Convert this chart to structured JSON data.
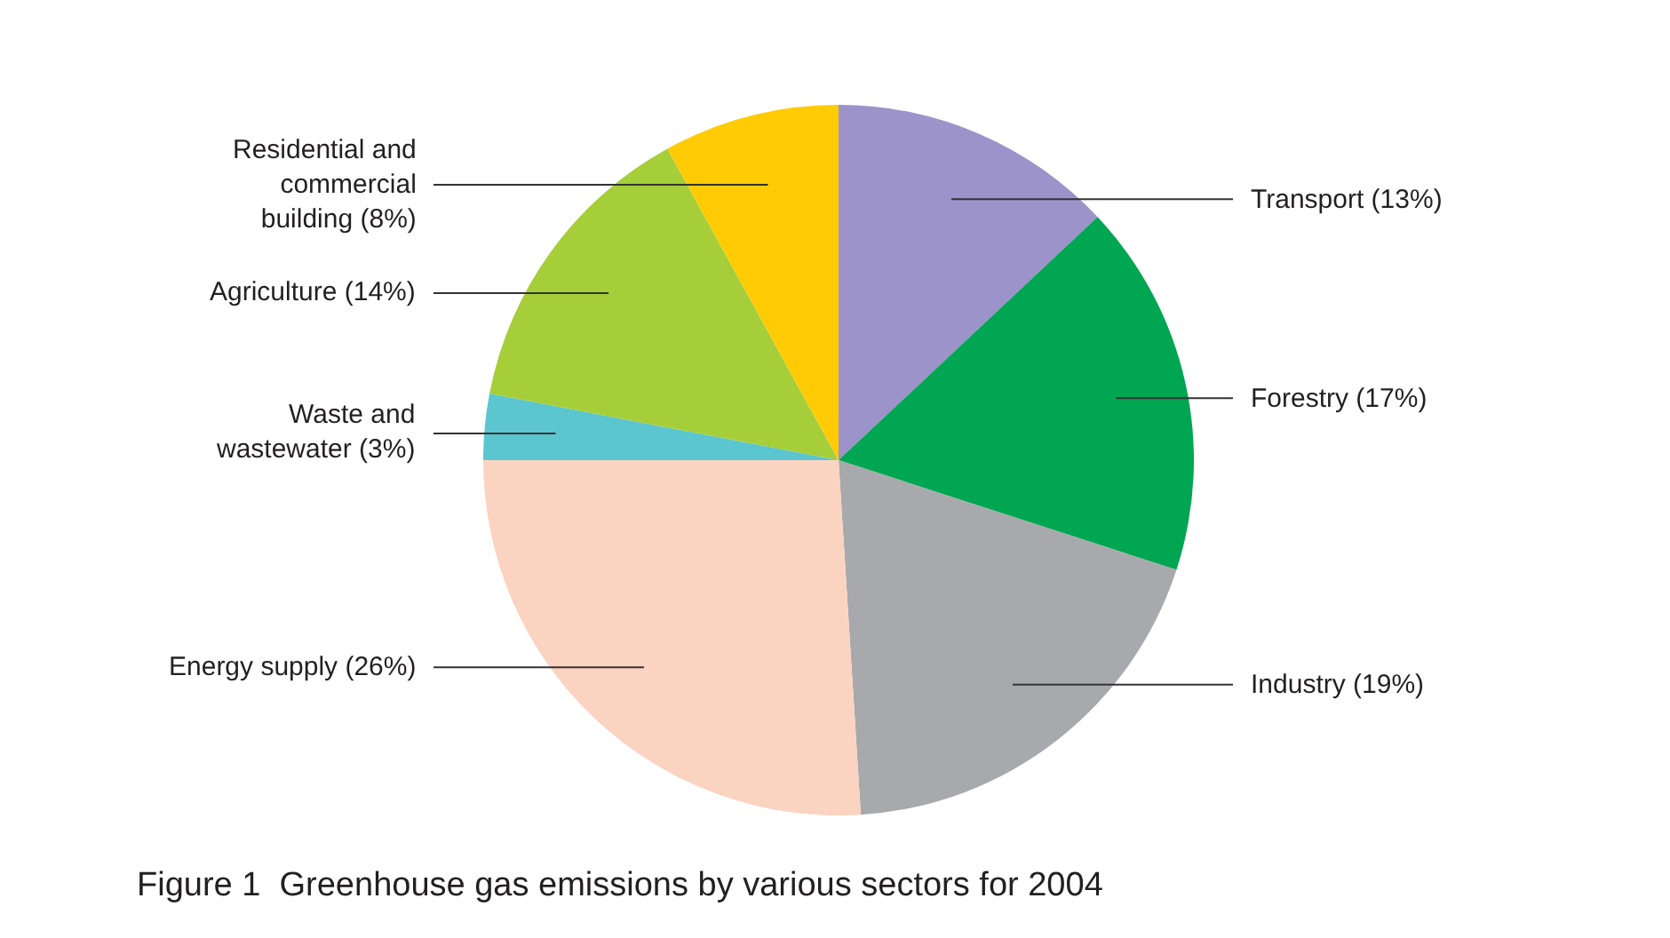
{
  "chart_data": {
    "type": "pie",
    "title": "Figure 1  Greenhouse gas emissions by various sectors for 2004",
    "categories": [
      "Transport (13%)",
      "Forestry (17%)",
      "Industry (19%)",
      "Energy supply (26%)",
      "Waste and\nwastewater (3%)",
      "Agriculture (14%)",
      "Residential and\ncommercial\nbuilding (8%)"
    ],
    "values": [
      13,
      17,
      19,
      26,
      3,
      14,
      8
    ],
    "colors": [
      "#9b93c9",
      "#00a651",
      "#a7a9ac",
      "#fbd3c1",
      "#5bc5d0",
      "#a6ce39",
      "#ffcb05"
    ],
    "legend": false
  }
}
